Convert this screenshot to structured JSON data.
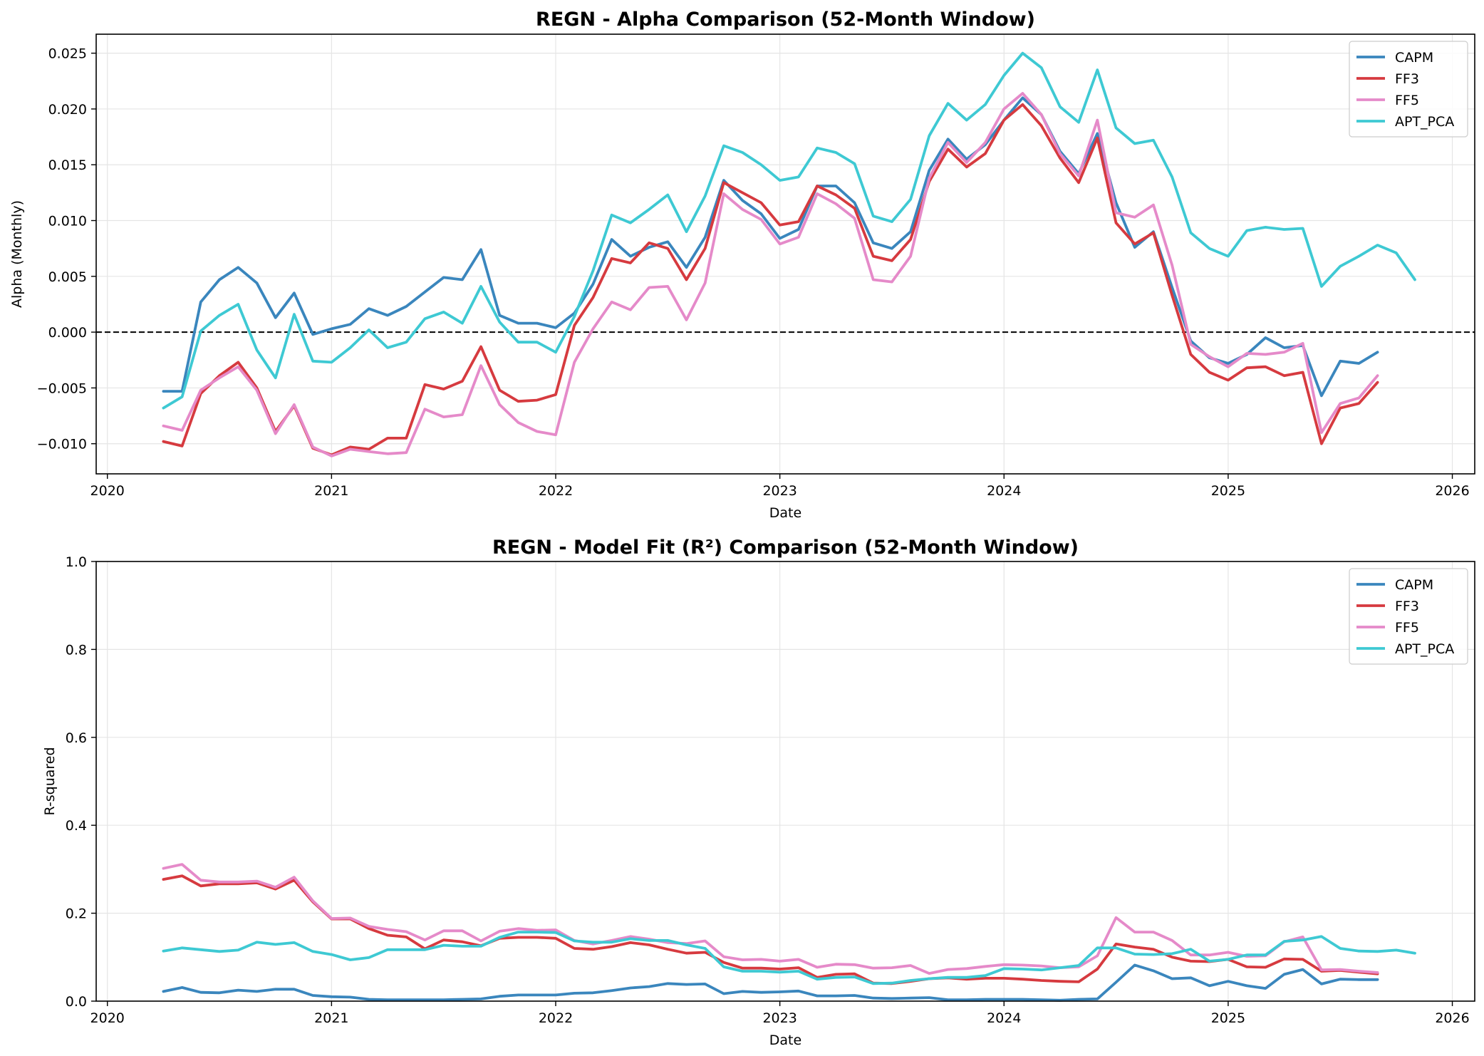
{
  "chart_data": [
    {
      "type": "line",
      "title": "REGN - Alpha Comparison (52-Month Window)",
      "xlabel": "Date",
      "ylabel": "Alpha (Monthly)",
      "xlim": [
        2019.95,
        2026.1
      ],
      "ylim": [
        -0.0127,
        0.0267
      ],
      "x_ticks": [
        2020,
        2021,
        2022,
        2023,
        2024,
        2025,
        2026
      ],
      "x_tick_labels": [
        "2020",
        "2021",
        "2022",
        "2023",
        "2024",
        "2025",
        "2026"
      ],
      "y_ticks": [
        -0.01,
        -0.005,
        0.0,
        0.005,
        0.01,
        0.015,
        0.02,
        0.025
      ],
      "y_tick_labels": [
        "−0.010",
        "−0.005",
        "0.000",
        "0.005",
        "0.010",
        "0.015",
        "0.020",
        "0.025"
      ],
      "grid": true,
      "reference_line": 0,
      "legend_position": "top-right",
      "x_start": 2020.25,
      "x_step": 0.08333,
      "series": [
        {
          "name": "CAPM",
          "color": "#3a86bd",
          "values": [
            -0.0053,
            -0.0053,
            0.0027,
            0.0047,
            0.0058,
            0.0044,
            0.0013,
            0.0035,
            -0.0002,
            0.0003,
            0.0007,
            0.0021,
            0.0015,
            0.0023,
            0.0036,
            0.0049,
            0.0047,
            0.0074,
            0.0015,
            0.0008,
            0.0008,
            0.0004,
            0.0017,
            0.0043,
            0.0083,
            0.0068,
            0.0076,
            0.0081,
            0.0058,
            0.0085,
            0.0136,
            0.0118,
            0.0106,
            0.0084,
            0.0092,
            0.0131,
            0.0131,
            0.0116,
            0.008,
            0.0075,
            0.009,
            0.0145,
            0.0173,
            0.0155,
            0.0168,
            0.019,
            0.021,
            0.0195,
            0.0162,
            0.0142,
            0.0178,
            0.0116,
            0.0076,
            0.009,
            0.004,
            -0.0008,
            -0.0023,
            -0.0028,
            -0.002,
            -0.0005,
            -0.0014,
            -0.0012,
            -0.0057,
            -0.0026,
            -0.0028,
            -0.0018
          ]
        },
        {
          "name": "FF3",
          "color": "#d63a3f",
          "values": [
            -0.0098,
            -0.0102,
            -0.0055,
            -0.0039,
            -0.0027,
            -0.005,
            -0.0089,
            -0.0066,
            -0.0104,
            -0.011,
            -0.0103,
            -0.0105,
            -0.0095,
            -0.0095,
            -0.0047,
            -0.0051,
            -0.0044,
            -0.0013,
            -0.0052,
            -0.0062,
            -0.0061,
            -0.0056,
            0.0006,
            0.0031,
            0.0066,
            0.0062,
            0.008,
            0.0075,
            0.0047,
            0.0075,
            0.0134,
            0.0125,
            0.0116,
            0.0096,
            0.0099,
            0.0131,
            0.0123,
            0.0111,
            0.0068,
            0.0064,
            0.0083,
            0.0135,
            0.0164,
            0.0148,
            0.016,
            0.019,
            0.0204,
            0.0185,
            0.0156,
            0.0134,
            0.0174,
            0.0098,
            0.0079,
            0.0089,
            0.0033,
            -0.002,
            -0.0036,
            -0.0043,
            -0.0032,
            -0.0031,
            -0.0039,
            -0.0036,
            -0.01,
            -0.0068,
            -0.0064,
            -0.0045
          ]
        },
        {
          "name": "FF5",
          "color": "#e58ac9",
          "values": [
            -0.0084,
            -0.0088,
            -0.0052,
            -0.0041,
            -0.0031,
            -0.0052,
            -0.0091,
            -0.0065,
            -0.0103,
            -0.0111,
            -0.0105,
            -0.0107,
            -0.0109,
            -0.0108,
            -0.0069,
            -0.0076,
            -0.0074,
            -0.003,
            -0.0065,
            -0.0081,
            -0.0089,
            -0.0092,
            -0.0027,
            0.0003,
            0.0027,
            0.002,
            0.004,
            0.0041,
            0.0011,
            0.0044,
            0.0124,
            0.011,
            0.0101,
            0.0079,
            0.0085,
            0.0124,
            0.0115,
            0.0102,
            0.0047,
            0.0045,
            0.0068,
            0.0138,
            0.017,
            0.0152,
            0.017,
            0.02,
            0.0214,
            0.0195,
            0.016,
            0.014,
            0.019,
            0.0107,
            0.0103,
            0.0114,
            0.006,
            -0.0011,
            -0.0022,
            -0.0031,
            -0.0019,
            -0.002,
            -0.0018,
            -0.001,
            -0.009,
            -0.0064,
            -0.0059,
            -0.0039
          ]
        },
        {
          "name": "APT_PCA",
          "color": "#3ec9d3",
          "values": [
            -0.0068,
            -0.0058,
            0.0001,
            0.0015,
            0.0025,
            -0.0016,
            -0.0041,
            0.0016,
            -0.0026,
            -0.0027,
            -0.0014,
            0.0002,
            -0.0014,
            -0.0009,
            0.0012,
            0.0018,
            0.0008,
            0.0041,
            0.0009,
            -0.0009,
            -0.0009,
            -0.0018,
            0.0014,
            0.0055,
            0.0105,
            0.0098,
            0.011,
            0.0123,
            0.009,
            0.0122,
            0.0167,
            0.0161,
            0.015,
            0.0136,
            0.0139,
            0.0165,
            0.0161,
            0.0151,
            0.0104,
            0.0099,
            0.0119,
            0.0176,
            0.0205,
            0.019,
            0.0204,
            0.023,
            0.025,
            0.0237,
            0.0202,
            0.0188,
            0.0235,
            0.0183,
            0.0169,
            0.0172,
            0.0139,
            0.0089,
            0.0075,
            0.0068,
            0.0091,
            0.0094,
            0.0092,
            0.0093,
            0.0041,
            0.0059,
            0.0068,
            0.0078,
            0.0071,
            0.0047
          ]
        }
      ]
    },
    {
      "type": "line",
      "title": "REGN - Model Fit (R²) Comparison (52-Month Window)",
      "xlabel": "Date",
      "ylabel": "R-squared",
      "xlim": [
        2019.95,
        2026.1
      ],
      "ylim": [
        0.0,
        1.0
      ],
      "x_ticks": [
        2020,
        2021,
        2022,
        2023,
        2024,
        2025,
        2026
      ],
      "x_tick_labels": [
        "2020",
        "2021",
        "2022",
        "2023",
        "2024",
        "2025",
        "2026"
      ],
      "y_ticks": [
        0.0,
        0.2,
        0.4,
        0.6,
        0.8,
        1.0
      ],
      "y_tick_labels": [
        "0.0",
        "0.2",
        "0.4",
        "0.6",
        "0.8",
        "1.0"
      ],
      "grid": true,
      "legend_position": "top-right",
      "x_start": 2020.25,
      "x_step": 0.08333,
      "series": [
        {
          "name": "CAPM",
          "color": "#3a86bd",
          "values": [
            0.022,
            0.031,
            0.02,
            0.019,
            0.025,
            0.022,
            0.027,
            0.027,
            0.013,
            0.01,
            0.009,
            0.004,
            0.003,
            0.003,
            0.003,
            0.003,
            0.004,
            0.005,
            0.011,
            0.014,
            0.014,
            0.014,
            0.018,
            0.019,
            0.024,
            0.03,
            0.033,
            0.04,
            0.038,
            0.039,
            0.017,
            0.022,
            0.02,
            0.021,
            0.023,
            0.012,
            0.012,
            0.013,
            0.007,
            0.006,
            0.007,
            0.008,
            0.003,
            0.003,
            0.004,
            0.004,
            0.004,
            0.003,
            0.002,
            0.004,
            0.005,
            0.043,
            0.082,
            0.069,
            0.051,
            0.053,
            0.035,
            0.045,
            0.035,
            0.029,
            0.061,
            0.072,
            0.039,
            0.05,
            0.049,
            0.049
          ]
        },
        {
          "name": "FF3",
          "color": "#d63a3f",
          "values": [
            0.277,
            0.285,
            0.262,
            0.267,
            0.267,
            0.269,
            0.255,
            0.275,
            0.226,
            0.187,
            0.187,
            0.165,
            0.15,
            0.146,
            0.119,
            0.139,
            0.135,
            0.126,
            0.143,
            0.145,
            0.145,
            0.143,
            0.12,
            0.118,
            0.124,
            0.133,
            0.128,
            0.118,
            0.109,
            0.111,
            0.088,
            0.075,
            0.075,
            0.073,
            0.076,
            0.054,
            0.061,
            0.062,
            0.041,
            0.04,
            0.045,
            0.051,
            0.053,
            0.05,
            0.052,
            0.052,
            0.05,
            0.047,
            0.045,
            0.044,
            0.073,
            0.13,
            0.123,
            0.118,
            0.1,
            0.091,
            0.09,
            0.095,
            0.078,
            0.077,
            0.096,
            0.095,
            0.068,
            0.07,
            0.066,
            0.062
          ]
        },
        {
          "name": "FF5",
          "color": "#e58ac9",
          "values": [
            0.302,
            0.311,
            0.275,
            0.271,
            0.271,
            0.273,
            0.259,
            0.282,
            0.228,
            0.188,
            0.189,
            0.17,
            0.163,
            0.158,
            0.139,
            0.16,
            0.16,
            0.137,
            0.159,
            0.165,
            0.161,
            0.162,
            0.138,
            0.13,
            0.138,
            0.147,
            0.141,
            0.133,
            0.131,
            0.137,
            0.101,
            0.094,
            0.095,
            0.091,
            0.095,
            0.077,
            0.084,
            0.083,
            0.075,
            0.076,
            0.081,
            0.063,
            0.072,
            0.074,
            0.079,
            0.083,
            0.082,
            0.08,
            0.076,
            0.078,
            0.103,
            0.19,
            0.157,
            0.157,
            0.138,
            0.105,
            0.105,
            0.111,
            0.102,
            0.103,
            0.135,
            0.146,
            0.071,
            0.072,
            0.068,
            0.065
          ]
        },
        {
          "name": "APT_PCA",
          "color": "#3ec9d3",
          "values": [
            0.114,
            0.121,
            0.117,
            0.113,
            0.116,
            0.134,
            0.129,
            0.133,
            0.113,
            0.106,
            0.094,
            0.099,
            0.117,
            0.117,
            0.117,
            0.127,
            0.125,
            0.125,
            0.145,
            0.157,
            0.157,
            0.156,
            0.137,
            0.134,
            0.134,
            0.142,
            0.138,
            0.138,
            0.128,
            0.12,
            0.078,
            0.068,
            0.068,
            0.066,
            0.068,
            0.05,
            0.054,
            0.055,
            0.04,
            0.041,
            0.047,
            0.051,
            0.054,
            0.054,
            0.058,
            0.074,
            0.073,
            0.071,
            0.076,
            0.081,
            0.121,
            0.121,
            0.107,
            0.106,
            0.108,
            0.118,
            0.091,
            0.095,
            0.105,
            0.105,
            0.136,
            0.139,
            0.147,
            0.12,
            0.114,
            0.113,
            0.116,
            0.109
          ]
        }
      ]
    }
  ]
}
